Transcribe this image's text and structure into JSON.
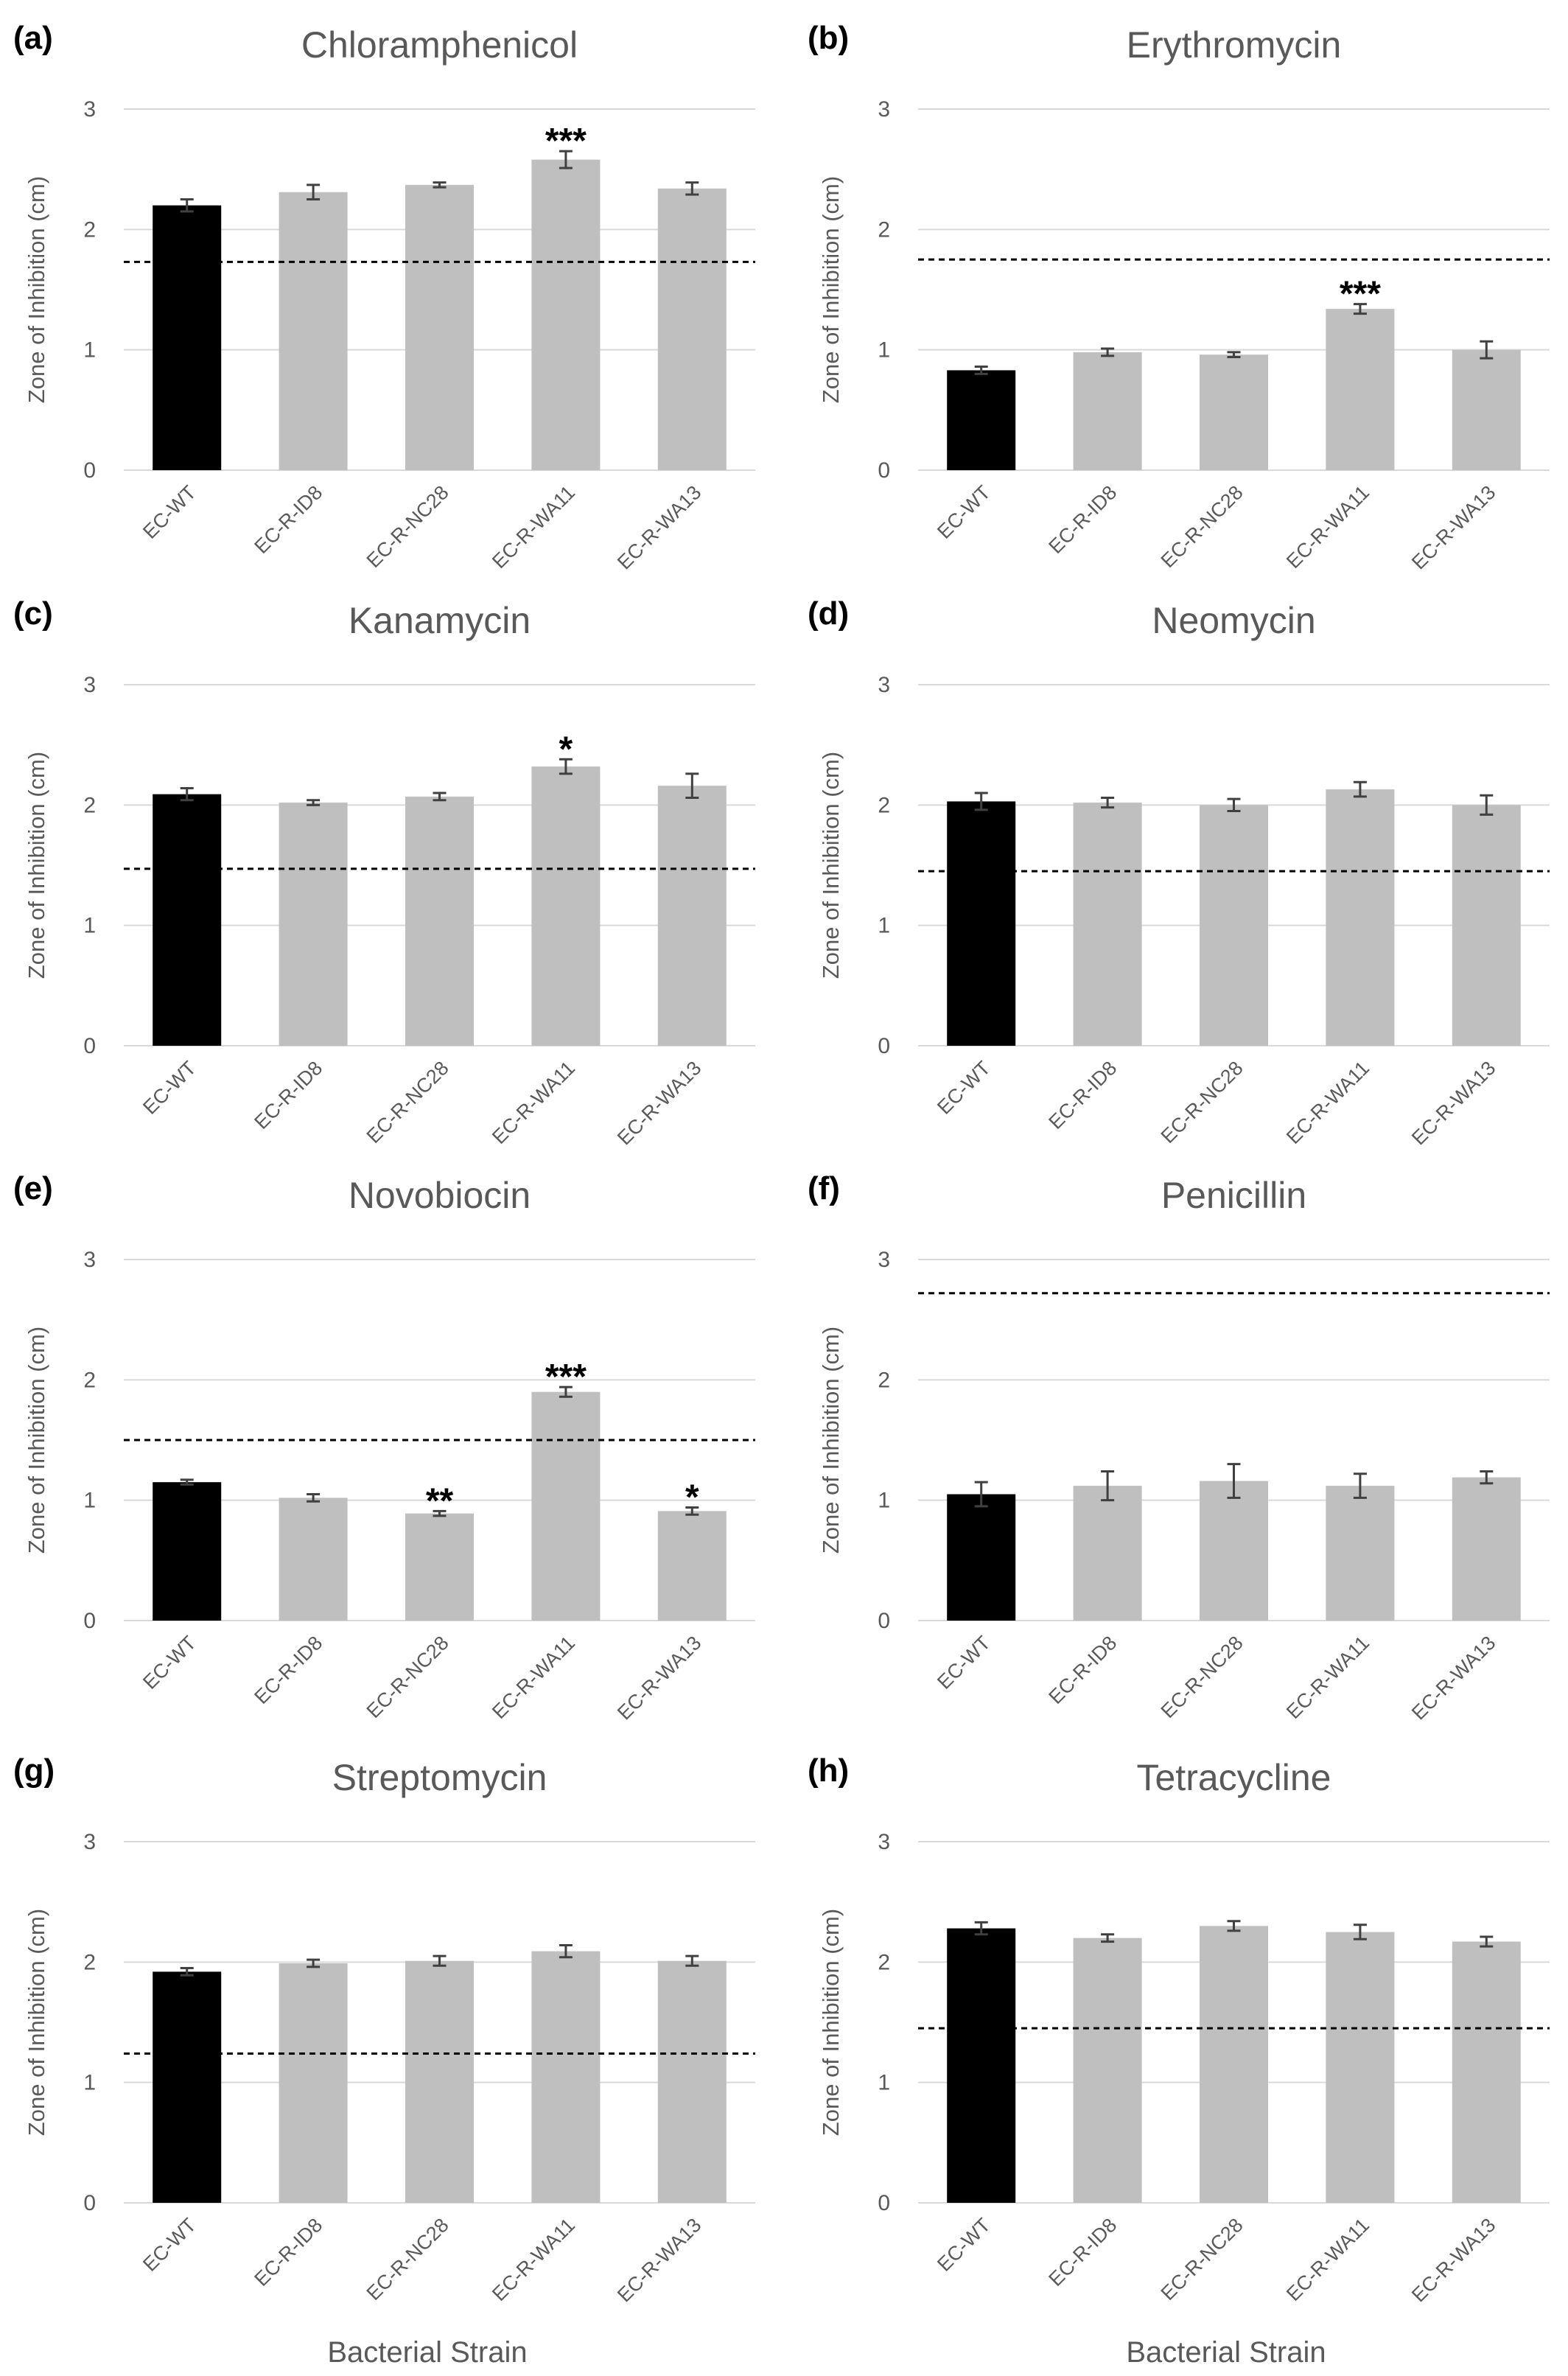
{
  "bottom_labels": [
    "Bacterial Strain",
    "Bacterial Strain"
  ],
  "colors": {
    "wildtype": "#000000",
    "resistant": "#bfbfbf",
    "text": "#595959",
    "grid": "#d9d9d9"
  },
  "chart_data": [
    {
      "panel": "(a)",
      "type": "bar",
      "title": "Chloramphenicol",
      "ylabel": "Zone of Inhibition (cm)",
      "xlabel": "",
      "categories": [
        "EC-WT",
        "EC-R-ID8",
        "EC-R-NC28",
        "EC-R-WA11",
        "EC-R-WA13"
      ],
      "values": [
        2.2,
        2.31,
        2.37,
        2.58,
        2.34
      ],
      "errors": [
        0.05,
        0.06,
        0.02,
        0.07,
        0.05
      ],
      "significance": [
        "",
        "",
        "",
        "***",
        ""
      ],
      "reference_line": 1.73,
      "yticks": [
        0,
        1,
        2,
        3
      ],
      "ylim": [
        0,
        3
      ],
      "grid": true
    },
    {
      "panel": "(b)",
      "type": "bar",
      "title": "Erythromycin",
      "ylabel": "Zone of Inhibition (cm)",
      "xlabel": "",
      "categories": [
        "EC-WT",
        "EC-R-ID8",
        "EC-R-NC28",
        "EC-R-WA11",
        "EC-R-WA13"
      ],
      "values": [
        0.83,
        0.98,
        0.96,
        1.34,
        1.0
      ],
      "errors": [
        0.03,
        0.03,
        0.02,
        0.04,
        0.07
      ],
      "significance": [
        "",
        "",
        "",
        "***",
        ""
      ],
      "reference_line": 1.75,
      "yticks": [
        0,
        1,
        2,
        3
      ],
      "ylim": [
        0,
        3
      ],
      "grid": true
    },
    {
      "panel": "(c)",
      "type": "bar",
      "title": "Kanamycin",
      "ylabel": "Zone of Inhibition (cm)",
      "xlabel": "",
      "categories": [
        "EC-WT",
        "EC-R-ID8",
        "EC-R-NC28",
        "EC-R-WA11",
        "EC-R-WA13"
      ],
      "values": [
        2.09,
        2.02,
        2.07,
        2.32,
        2.16
      ],
      "errors": [
        0.05,
        0.02,
        0.03,
        0.06,
        0.1
      ],
      "significance": [
        "",
        "",
        "",
        "*",
        ""
      ],
      "reference_line": 1.47,
      "yticks": [
        0,
        1,
        2,
        3
      ],
      "ylim": [
        0,
        3
      ],
      "grid": true
    },
    {
      "panel": "(d)",
      "type": "bar",
      "title": "Neomycin",
      "ylabel": "Zone of Inhibition (cm)",
      "xlabel": "",
      "categories": [
        "EC-WT",
        "EC-R-ID8",
        "EC-R-NC28",
        "EC-R-WA11",
        "EC-R-WA13"
      ],
      "values": [
        2.03,
        2.02,
        2.0,
        2.13,
        2.0
      ],
      "errors": [
        0.07,
        0.04,
        0.05,
        0.06,
        0.08
      ],
      "significance": [
        "",
        "",
        "",
        "",
        ""
      ],
      "reference_line": 1.45,
      "yticks": [
        0,
        1,
        2,
        3
      ],
      "ylim": [
        0,
        3
      ],
      "grid": true
    },
    {
      "panel": "(e)",
      "type": "bar",
      "title": "Novobiocin",
      "ylabel": "Zone of Inhibition (cm)",
      "xlabel": "",
      "categories": [
        "EC-WT",
        "EC-R-ID8",
        "EC-R-NC28",
        "EC-R-WA11",
        "EC-R-WA13"
      ],
      "values": [
        1.15,
        1.02,
        0.89,
        1.9,
        0.91
      ],
      "errors": [
        0.02,
        0.03,
        0.02,
        0.04,
        0.03
      ],
      "significance": [
        "",
        "",
        "**",
        "***",
        "*"
      ],
      "reference_line": 1.5,
      "yticks": [
        0,
        1,
        2,
        3
      ],
      "ylim": [
        0,
        3
      ],
      "grid": true
    },
    {
      "panel": "(f)",
      "type": "bar",
      "title": "Penicillin",
      "ylabel": "Zone of Inhibition (cm)",
      "xlabel": "",
      "categories": [
        "EC-WT",
        "EC-R-ID8",
        "EC-R-NC28",
        "EC-R-WA11",
        "EC-R-WA13"
      ],
      "values": [
        1.05,
        1.12,
        1.16,
        1.12,
        1.19
      ],
      "errors": [
        0.1,
        0.12,
        0.14,
        0.1,
        0.05
      ],
      "significance": [
        "",
        "",
        "",
        "",
        ""
      ],
      "reference_line": 2.72,
      "yticks": [
        0,
        1,
        2,
        3
      ],
      "ylim": [
        0,
        3
      ],
      "grid": true
    },
    {
      "panel": "(g)",
      "type": "bar",
      "title": "Streptomycin",
      "ylabel": "Zone of Inhibition (cm)",
      "xlabel": "",
      "categories": [
        "EC-WT",
        "EC-R-ID8",
        "EC-R-NC28",
        "EC-R-WA11",
        "EC-R-WA13"
      ],
      "values": [
        1.92,
        1.99,
        2.01,
        2.09,
        2.01
      ],
      "errors": [
        0.03,
        0.03,
        0.04,
        0.05,
        0.04
      ],
      "significance": [
        "",
        "",
        "",
        "",
        ""
      ],
      "reference_line": 1.24,
      "yticks": [
        0,
        1,
        2,
        3
      ],
      "ylim": [
        0,
        3
      ],
      "grid": true
    },
    {
      "panel": "(h)",
      "type": "bar",
      "title": "Tetracycline",
      "ylabel": "Zone of Inhibition (cm)",
      "xlabel": "",
      "categories": [
        "EC-WT",
        "EC-R-ID8",
        "EC-R-NC28",
        "EC-R-WA11",
        "EC-R-WA13"
      ],
      "values": [
        2.28,
        2.2,
        2.3,
        2.25,
        2.17
      ],
      "errors": [
        0.05,
        0.03,
        0.04,
        0.06,
        0.04
      ],
      "significance": [
        "",
        "",
        "",
        "",
        ""
      ],
      "reference_line": 1.45,
      "yticks": [
        0,
        1,
        2,
        3
      ],
      "ylim": [
        0,
        3
      ],
      "grid": true
    }
  ]
}
